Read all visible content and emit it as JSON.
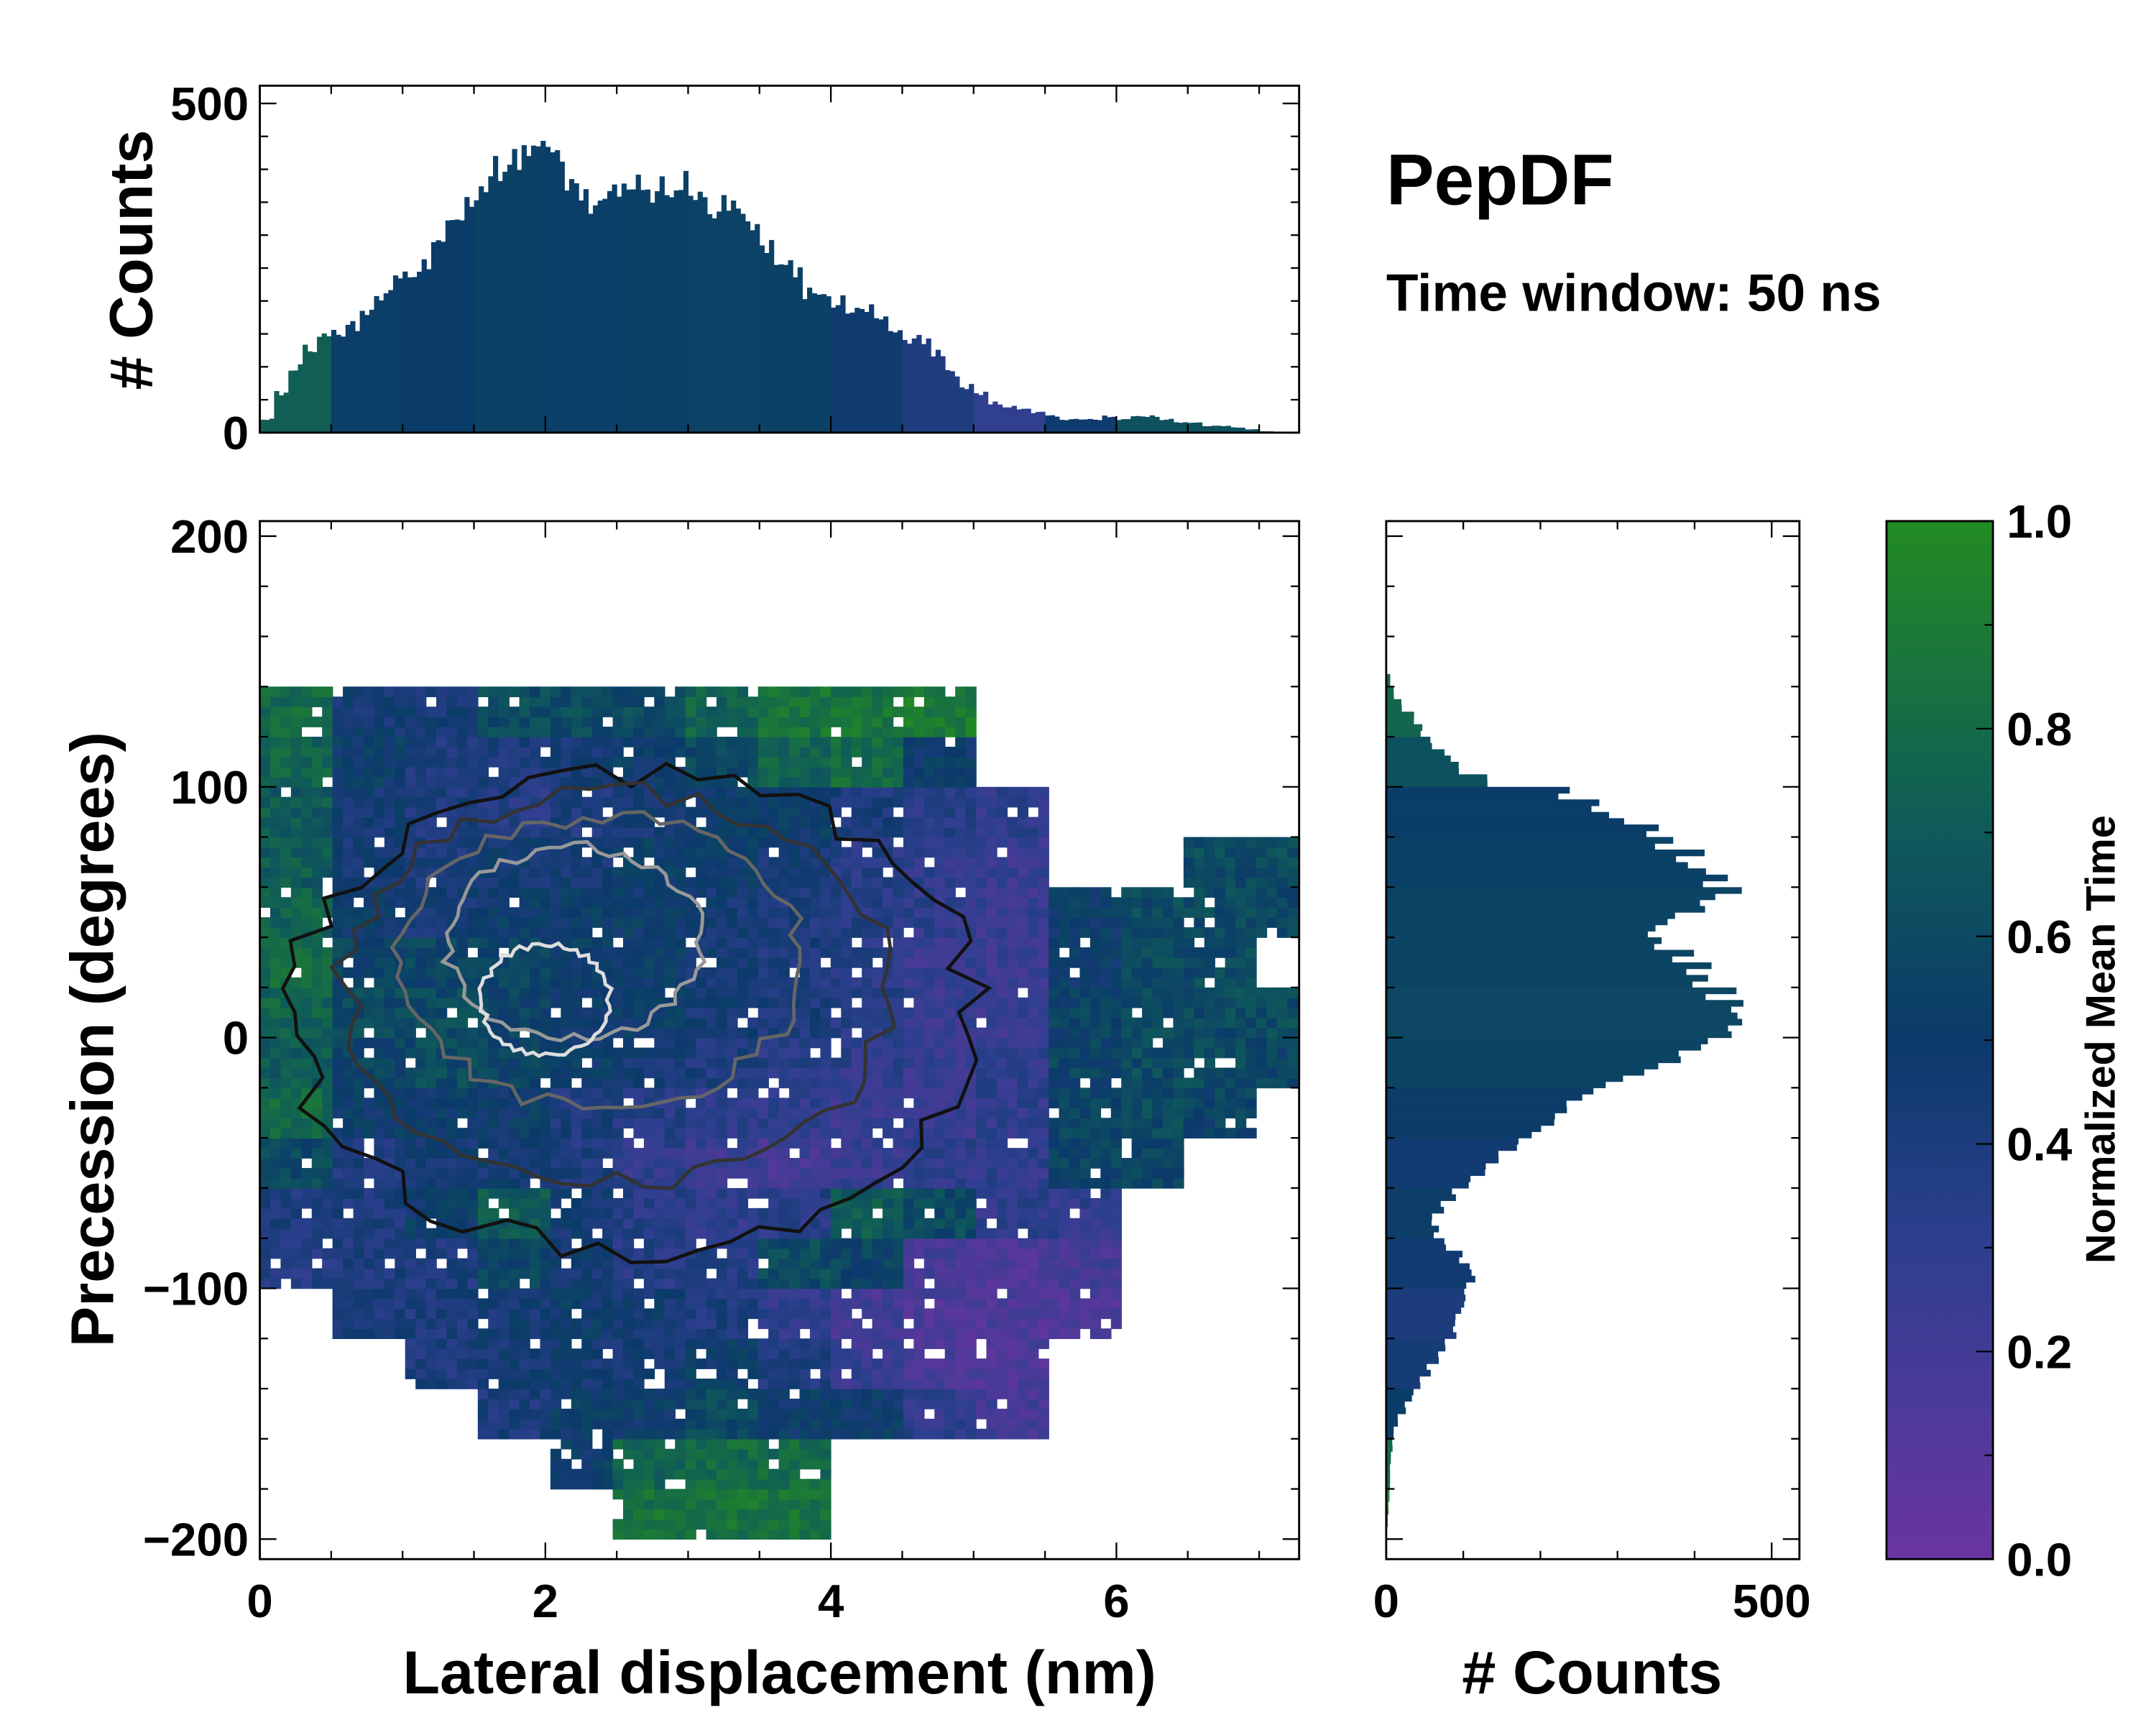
{
  "title": "PepDF",
  "subtitle": "Time window: 50 ns",
  "chart_data": [
    {
      "type": "heatmap",
      "name": "main",
      "xlabel": "Lateral displacement (nm)",
      "ylabel": "Precession (degrees)",
      "xlim": [
        0,
        7.28
      ],
      "ylim": [
        -208,
        206
      ],
      "xticks": [
        "0",
        "2",
        "4",
        "6"
      ],
      "yticks": [
        "200",
        "100",
        "0",
        "−100",
        "−200"
      ],
      "grid_x_edges_nm_step": 0.5,
      "grid_y_top_edges_deg": [
        140,
        120,
        100,
        80,
        60,
        40,
        20,
        0,
        -20,
        -40,
        -60,
        -80,
        -100,
        -120,
        -140,
        -160,
        -180
      ],
      "mean_time_grid": [
        [
          0.8,
          0.45,
          0.45,
          0.6,
          0.6,
          0.6,
          0.75,
          0.85,
          0.85,
          0.9,
          null,
          null,
          null,
          null,
          null
        ],
        [
          0.75,
          0.5,
          0.4,
          0.4,
          0.45,
          0.5,
          0.6,
          0.75,
          0.8,
          0.5,
          null,
          null,
          null,
          null,
          null
        ],
        [
          0.7,
          0.45,
          0.4,
          0.35,
          0.4,
          0.45,
          0.5,
          0.5,
          0.4,
          0.35,
          0.3,
          null,
          null,
          null,
          null
        ],
        [
          0.7,
          0.45,
          0.4,
          0.45,
          0.45,
          0.5,
          0.5,
          0.45,
          0.35,
          0.3,
          0.25,
          null,
          null,
          0.6,
          0.6
        ],
        [
          0.75,
          0.5,
          0.45,
          0.5,
          0.5,
          0.5,
          0.45,
          0.4,
          0.35,
          0.3,
          0.25,
          0.5,
          0.6,
          0.6,
          0.6
        ],
        [
          0.8,
          0.55,
          0.55,
          0.55,
          0.5,
          0.5,
          0.45,
          0.4,
          0.35,
          0.25,
          0.25,
          0.5,
          0.6,
          0.6,
          null
        ],
        [
          0.75,
          0.6,
          0.6,
          0.55,
          0.5,
          0.5,
          0.45,
          0.4,
          0.35,
          0.25,
          0.25,
          0.55,
          0.6,
          0.6,
          0.6
        ],
        [
          0.7,
          0.55,
          0.6,
          0.55,
          0.5,
          0.45,
          0.4,
          0.35,
          0.3,
          0.25,
          0.3,
          0.55,
          0.6,
          0.6,
          0.55
        ],
        [
          0.8,
          0.5,
          0.5,
          0.5,
          0.4,
          0.35,
          0.3,
          0.3,
          0.25,
          0.25,
          0.3,
          0.55,
          0.6,
          0.55,
          null
        ],
        [
          0.6,
          0.4,
          0.45,
          0.45,
          0.4,
          0.3,
          0.25,
          0.2,
          0.25,
          0.3,
          0.3,
          0.55,
          0.55,
          null,
          null
        ],
        [
          0.4,
          0.4,
          0.5,
          0.7,
          0.45,
          0.35,
          0.3,
          0.35,
          0.7,
          0.6,
          0.3,
          0.3,
          null,
          null,
          null
        ],
        [
          0.35,
          0.4,
          0.4,
          0.55,
          0.45,
          0.35,
          0.35,
          0.6,
          0.55,
          0.2,
          0.15,
          0.2,
          null,
          null,
          null
        ],
        [
          null,
          0.4,
          0.4,
          0.45,
          0.5,
          0.45,
          0.4,
          0.3,
          0.2,
          0.15,
          0.15,
          0.15,
          null,
          null,
          null
        ],
        [
          null,
          null,
          0.4,
          0.45,
          0.45,
          0.45,
          0.5,
          0.4,
          0.25,
          0.15,
          0.15,
          null,
          null,
          null,
          null
        ],
        [
          null,
          null,
          null,
          0.4,
          0.5,
          0.5,
          0.6,
          0.5,
          0.5,
          0.3,
          0.2,
          null,
          null,
          null,
          null
        ],
        [
          null,
          null,
          null,
          null,
          0.5,
          0.75,
          0.8,
          0.8,
          null,
          null,
          null,
          null,
          null,
          null,
          null
        ],
        [
          null,
          null,
          null,
          null,
          null,
          0.85,
          0.85,
          0.85,
          null,
          null,
          null,
          null,
          null,
          null,
          null
        ]
      ],
      "contours": [
        {
          "cx": 2.6,
          "cy": 10,
          "rx": 2.4,
          "ry": 95,
          "color": "#111111"
        },
        {
          "cx": 2.5,
          "cy": 20,
          "rx": 1.9,
          "ry": 78,
          "color": "#333333"
        },
        {
          "cx": 2.4,
          "cy": 30,
          "rx": 1.4,
          "ry": 58,
          "color": "#666666"
        },
        {
          "cx": 2.2,
          "cy": 38,
          "rx": 0.9,
          "ry": 38,
          "color": "#999999"
        },
        {
          "cx": 2.0,
          "cy": 15,
          "rx": 0.45,
          "ry": 22,
          "color": "#dddddd"
        }
      ]
    },
    {
      "type": "bar",
      "name": "top-histogram",
      "ylabel": "# Counts",
      "ylim": [
        0,
        527
      ],
      "yticks": [
        "0",
        "500"
      ],
      "bin_start_nm": 0,
      "bin_width_nm": 0.1,
      "values": [
        20,
        60,
        100,
        130,
        150,
        150,
        160,
        180,
        210,
        230,
        250,
        260,
        280,
        310,
        340,
        370,
        400,
        410,
        420,
        420,
        410,
        390,
        360,
        350,
        360,
        360,
        370,
        370,
        370,
        380,
        360,
        340,
        350,
        340,
        320,
        290,
        270,
        250,
        210,
        200,
        200,
        190,
        190,
        170,
        150,
        140,
        140,
        120,
        90,
        70,
        60,
        45,
        40,
        35,
        30,
        25,
        20,
        20,
        20,
        25,
        20,
        25,
        25,
        20,
        15,
        15,
        10,
        10,
        8,
        5,
        2
      ]
    },
    {
      "type": "bar",
      "name": "right-histogram",
      "xlabel": "# Counts",
      "xlim": [
        0,
        536
      ],
      "xticks": [
        "0",
        "500"
      ],
      "bin_top_deg": 145,
      "bin_width_deg": 5,
      "values": [
        5,
        10,
        20,
        35,
        45,
        60,
        80,
        100,
        130,
        230,
        270,
        300,
        340,
        370,
        390,
        410,
        420,
        440,
        410,
        370,
        340,
        350,
        380,
        400,
        420,
        440,
        450,
        450,
        430,
        410,
        380,
        340,
        300,
        270,
        230,
        210,
        190,
        170,
        150,
        130,
        110,
        90,
        75,
        60,
        65,
        75,
        95,
        110,
        110,
        105,
        100,
        95,
        90,
        80,
        70,
        55,
        45,
        35,
        25,
        15,
        10,
        8,
        6,
        5,
        5,
        4,
        3,
        2
      ]
    },
    {
      "type": "colorbar",
      "name": "colorbar",
      "label": "Normalized Mean Time",
      "range": [
        0,
        1
      ],
      "ticks": [
        "0.0",
        "0.2",
        "0.4",
        "0.6",
        "0.8",
        "1.0"
      ],
      "colors": [
        "#6a34a0",
        "#2e3f8f",
        "#0b3a6a",
        "#0f5a5a",
        "#228b22"
      ]
    }
  ]
}
